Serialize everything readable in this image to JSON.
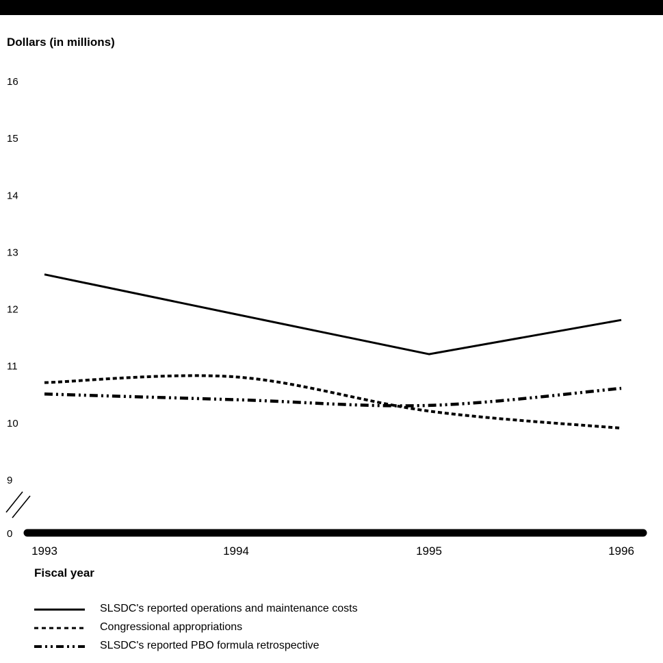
{
  "chart_data": {
    "type": "line",
    "ylabel": "Dollars (in millions)",
    "xlabel": "Fiscal year",
    "x": [
      "1993",
      "1994",
      "1995",
      "1996"
    ],
    "y_ticks": [
      0,
      9,
      10,
      11,
      12,
      13,
      14,
      15,
      16
    ],
    "ylim": [
      9,
      16
    ],
    "axis_break": true,
    "grid": false,
    "legend_position": "bottom-left",
    "series": [
      {
        "name": "SLSDC's reported operations and maintenance costs",
        "style": "solid",
        "values": [
          12.6,
          11.9,
          11.2,
          11.8
        ]
      },
      {
        "name": "Congressional appropriations",
        "style": "dotted",
        "values": [
          10.7,
          10.8,
          10.2,
          9.9
        ]
      },
      {
        "name": "SLSDC's reported PBO formula retrospective",
        "style": "dash-dot",
        "values": [
          10.5,
          10.4,
          10.3,
          10.6
        ]
      }
    ]
  }
}
